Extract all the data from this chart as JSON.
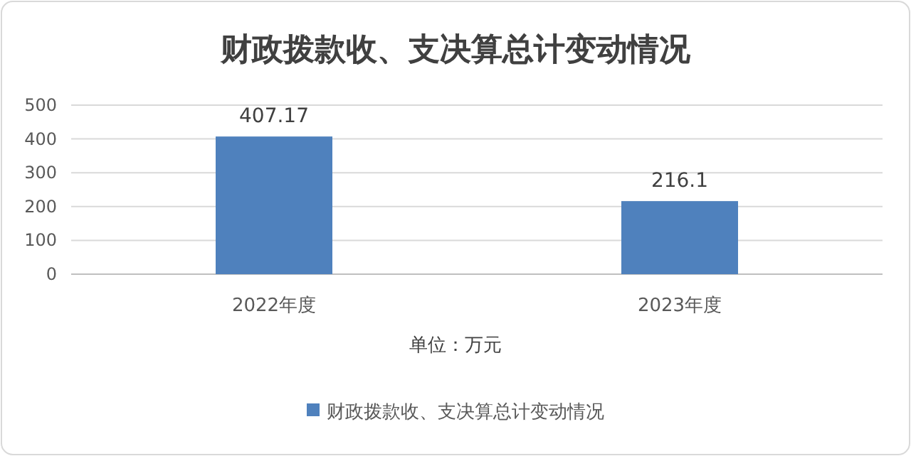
{
  "chart_data": {
    "type": "bar",
    "title": "财政拨款收、支决算总计变动情况",
    "categories": [
      "2022年度",
      "2023年度"
    ],
    "series": [
      {
        "name": "财政拨款收、支决算总计变动情况",
        "color": "#4f81bd",
        "values": [
          407.17,
          216.1
        ]
      }
    ],
    "xlabel": "单位：万元",
    "ylim": [
      0,
      500
    ],
    "yticks": [
      0,
      100,
      200,
      300,
      400,
      500
    ],
    "grid": "y",
    "legend": "bottom",
    "data_labels": true
  }
}
